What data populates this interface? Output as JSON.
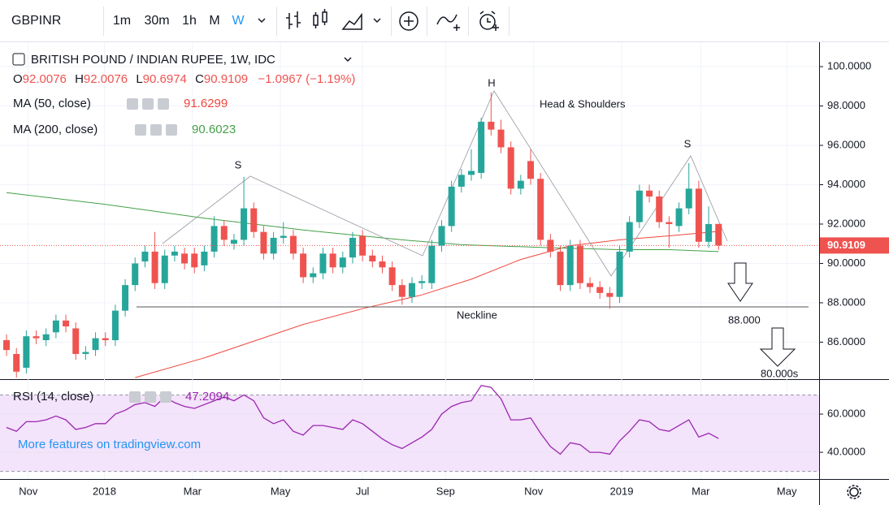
{
  "toolbar": {
    "symbol": "GBPINR",
    "intervals": [
      "1m",
      "30m",
      "1h",
      "M",
      "W"
    ]
  },
  "chart_data": {
    "type": "candlestick",
    "title": "BRITISH POUND / INDIAN RUPEE, 1W, IDC",
    "ohlc_legend": {
      "labels": [
        "O",
        "H",
        "L",
        "C"
      ],
      "change": "−1.0967 (−1.19%)"
    },
    "open": [
      86.1,
      85.4,
      84.7,
      86.3,
      86.1,
      86.5,
      87.1,
      86.7,
      85.4,
      85.6,
      86.2,
      86.1,
      87.6,
      88.9,
      90.1,
      90.6,
      89.0,
      90.4,
      90.5,
      90.5,
      89.9,
      90.6,
      91.9,
      91.0,
      91.2,
      92.8,
      91.6,
      90.5,
      91.3,
      91.4,
      90.5,
      89.3,
      89.5,
      90.5,
      89.8,
      90.3,
      91.4,
      90.4,
      90.1,
      89.8,
      88.9,
      88.3,
      89.0,
      89.0,
      90.9,
      91.9,
      93.9,
      94.5,
      94.6,
      97.2,
      96.8,
      95.9,
      93.8,
      95.2,
      94.3,
      91.2,
      90.6,
      88.9,
      90.9,
      89.0,
      88.8,
      88.5,
      88.3,
      90.6,
      92.1,
      93.7,
      93.4,
      92.1,
      91.9,
      92.8,
      93.8,
      91.1,
      92.0076
    ],
    "high": [
      86.4,
      85.7,
      86.6,
      86.6,
      86.7,
      87.4,
      87.4,
      87.0,
      85.8,
      86.5,
      86.5,
      87.9,
      89.2,
      90.3,
      90.9,
      91.6,
      90.7,
      90.9,
      90.8,
      90.8,
      90.9,
      92.4,
      92.2,
      91.5,
      94.4,
      93.1,
      91.9,
      91.6,
      92.1,
      91.7,
      90.8,
      89.8,
      90.8,
      90.8,
      90.6,
      91.6,
      91.7,
      90.7,
      90.4,
      90.1,
      89.2,
      89.3,
      89.4,
      91.2,
      92.2,
      94.2,
      94.8,
      95.8,
      97.4,
      98.7,
      97.3,
      96.2,
      94.5,
      95.8,
      94.6,
      91.5,
      90.9,
      91.2,
      91.2,
      89.3,
      89.1,
      88.8,
      90.9,
      92.4,
      94.0,
      94.0,
      93.7,
      92.4,
      93.1,
      95.1,
      94.2,
      92.9,
      92.0076
    ],
    "low": [
      85.3,
      84.2,
      84.4,
      85.9,
      85.8,
      86.2,
      86.5,
      85.1,
      85.1,
      85.3,
      85.8,
      85.8,
      87.3,
      88.6,
      89.8,
      88.7,
      88.7,
      90.1,
      89.7,
      89.5,
      89.6,
      90.3,
      90.9,
      90.7,
      90.9,
      91.3,
      90.2,
      90.2,
      91.0,
      90.2,
      89.0,
      89.0,
      89.2,
      89.5,
      89.5,
      90.0,
      90.1,
      89.8,
      89.5,
      88.6,
      87.9,
      88.0,
      88.7,
      88.7,
      90.6,
      91.6,
      93.6,
      94.2,
      94.3,
      96.5,
      95.6,
      93.5,
      93.5,
      94.0,
      90.9,
      90.3,
      88.6,
      88.6,
      88.7,
      88.5,
      88.2,
      87.7,
      88.0,
      90.3,
      91.8,
      93.1,
      91.8,
      90.8,
      91.6,
      92.5,
      90.8,
      90.8,
      90.6974
    ],
    "close": [
      85.6,
      84.5,
      86.3,
      86.2,
      86.4,
      87.1,
      86.8,
      85.4,
      85.5,
      86.2,
      86.1,
      87.6,
      88.9,
      90.0,
      90.6,
      89.0,
      90.4,
      90.6,
      90.0,
      89.8,
      90.6,
      91.9,
      91.2,
      91.2,
      92.8,
      91.6,
      90.5,
      91.3,
      91.4,
      90.5,
      89.3,
      89.5,
      90.5,
      89.8,
      90.3,
      91.3,
      90.4,
      90.1,
      89.8,
      88.9,
      88.3,
      89.0,
      89.1,
      90.9,
      91.9,
      93.9,
      94.5,
      94.7,
      97.2,
      96.8,
      95.9,
      93.8,
      94.2,
      94.3,
      91.2,
      90.6,
      88.9,
      90.9,
      89.0,
      88.8,
      88.5,
      88.3,
      90.6,
      92.1,
      93.7,
      93.4,
      92.1,
      92.0,
      92.8,
      93.8,
      91.1,
      92.0,
      90.9109
    ],
    "up_color": "#26a69a",
    "down_color": "#ef5350",
    "xlim": [
      -0.66,
      82.17
    ],
    "xticks": [
      {
        "value": 2.2,
        "label": "Nov"
      },
      {
        "value": 9.9,
        "label": "2018"
      },
      {
        "value": 18.8,
        "label": "Mar"
      },
      {
        "value": 27.7,
        "label": "May"
      },
      {
        "value": 36.0,
        "label": "Jul"
      },
      {
        "value": 44.4,
        "label": "Sep"
      },
      {
        "value": 53.3,
        "label": "Nov"
      },
      {
        "value": 62.2,
        "label": "2019"
      },
      {
        "value": 70.2,
        "label": "Mar"
      },
      {
        "value": 78.9,
        "label": "May"
      }
    ],
    "ylim": [
      84.12,
      101.24
    ],
    "yticks": [
      {
        "value": 100,
        "label": "100.0000"
      },
      {
        "value": 98,
        "label": "98.0000"
      },
      {
        "value": 96,
        "label": "96.0000"
      },
      {
        "value": 94,
        "label": "94.0000"
      },
      {
        "value": 92,
        "label": "92.0000"
      },
      {
        "value": 90,
        "label": "90.0000"
      },
      {
        "value": 88,
        "label": "88.0000"
      },
      {
        "value": 86,
        "label": "86.0000"
      }
    ],
    "grid": true,
    "series": [
      {
        "name": "MA (50, close)",
        "color": "#f0473e",
        "x": [
          13,
          20,
          30,
          36,
          42,
          47,
          52,
          57,
          62,
          67,
          72
        ],
        "values": [
          84.2,
          85.2,
          86.9,
          87.7,
          88.4,
          89.2,
          90.2,
          90.9,
          91.2,
          91.4,
          91.6299
        ]
      },
      {
        "name": "MA (200, close)",
        "color": "#43a047",
        "x": [
          0,
          10,
          20,
          30,
          40,
          46,
          55,
          62,
          67,
          72
        ],
        "values": [
          93.6,
          93.0,
          92.3,
          91.7,
          91.2,
          90.95,
          90.8,
          90.7,
          90.7,
          90.6023
        ]
      }
    ],
    "annotations": [
      "H",
      "S",
      "S",
      "Head & Shoulders",
      "Neckline",
      "88.000",
      "80.000s"
    ],
    "rsi": {
      "name": "RSI (14, close)",
      "color": "#9c27b0",
      "values": [
        53,
        51,
        56,
        56,
        57,
        59,
        57,
        52,
        53,
        55,
        55,
        60,
        62,
        65,
        66,
        64,
        69,
        66,
        64,
        63,
        65,
        67,
        69,
        67,
        70,
        67,
        58,
        55,
        57,
        51,
        49,
        54,
        54,
        53,
        52,
        57,
        55,
        51,
        47,
        44,
        42,
        45,
        48,
        52,
        60,
        64,
        66,
        67,
        75,
        74,
        68,
        57,
        57,
        58,
        50,
        43,
        39,
        45,
        44,
        40,
        40,
        39,
        46,
        51,
        57,
        56,
        52,
        51,
        54,
        57,
        48,
        50,
        47.2094
      ],
      "ylim": [
        26.0,
        78.3
      ],
      "yticks": [
        {
          "value": 60,
          "label": "60.0000"
        },
        {
          "value": 40,
          "label": "40.0000"
        }
      ],
      "bands": [
        70,
        30
      ]
    },
    "watermark": "More features on tradingview.com"
  }
}
